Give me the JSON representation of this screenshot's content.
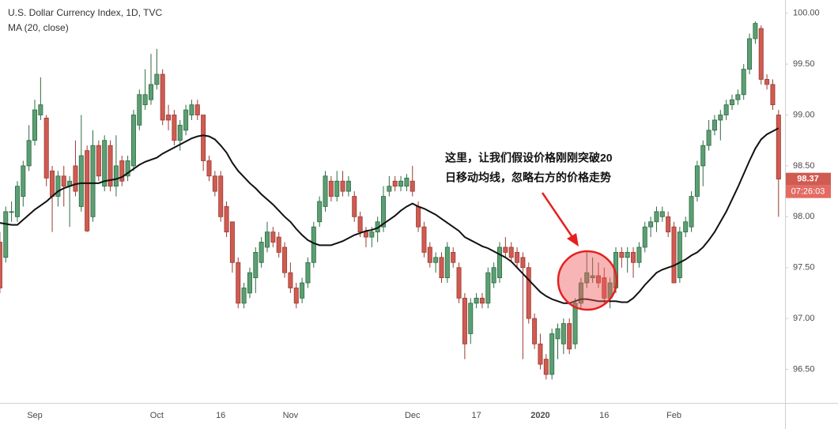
{
  "chart_data": {
    "type": "candlestick",
    "title": "U.S. Dollar Currency Index, 1D, TVC",
    "categories": [
      null,
      null,
      null,
      null,
      null,
      null,
      "Sep",
      null,
      null,
      null,
      null,
      null,
      null,
      null,
      null,
      null,
      null,
      null,
      null,
      null,
      null,
      null,
      null,
      null,
      null,
      null,
      null,
      "Oct",
      null,
      null,
      null,
      null,
      null,
      null,
      null,
      null,
      null,
      null,
      "16",
      null,
      null,
      null,
      null,
      null,
      null,
      null,
      null,
      null,
      null,
      null,
      "Nov",
      null,
      null,
      null,
      null,
      null,
      null,
      null,
      null,
      null,
      null,
      null,
      null,
      null,
      null,
      null,
      null,
      null,
      null,
      null,
      null,
      "Dec",
      null,
      null,
      null,
      null,
      null,
      null,
      null,
      null,
      null,
      null,
      "17",
      null,
      null,
      null,
      null,
      null,
      null,
      null,
      null,
      null,
      null,
      "2020",
      null,
      null,
      null,
      null,
      null,
      null,
      null,
      null,
      null,
      null,
      "16",
      null,
      null,
      null,
      null,
      null,
      null,
      null,
      null,
      null,
      null,
      null,
      "Feb",
      null,
      null,
      null,
      null,
      null,
      null,
      null,
      null,
      null,
      null,
      null,
      null,
      null,
      null,
      null,
      null,
      null,
      null
    ],
    "open": [
      97.75,
      97.6,
      98.05,
      98.0,
      98.2,
      98.5,
      98.75,
      99.0,
      98.97,
      98.45,
      98.2,
      98.4,
      98.3,
      98.5,
      98.1,
      98.65,
      98.0,
      98.7,
      98.3,
      98.7,
      98.3,
      98.55,
      98.4,
      98.5,
      98.9,
      99.1,
      99.15,
      99.3,
      99.4,
      99.0,
      99.0,
      98.75,
      98.85,
      99.0,
      99.1,
      99.0,
      98.55,
      98.4,
      98.4,
      98.1,
      97.95,
      97.55,
      97.15,
      97.25,
      97.4,
      97.55,
      97.7,
      97.85,
      97.8,
      97.7,
      97.45,
      97.3,
      97.2,
      97.35,
      97.55,
      97.95,
      98.1,
      98.35,
      98.2,
      98.35,
      98.25,
      98.2,
      98.0,
      97.85,
      97.8,
      97.85,
      97.9,
      98.25,
      98.35,
      98.3,
      98.3,
      98.35,
      98.1,
      97.9,
      97.7,
      97.55,
      97.6,
      97.4,
      97.65,
      97.5,
      97.2,
      96.85,
      97.15,
      97.2,
      97.15,
      97.35,
      97.4,
      97.7,
      97.7,
      97.65,
      97.6,
      97.5,
      97.0,
      96.75,
      96.6,
      96.45,
      96.8,
      96.75,
      96.95,
      96.75,
      97.15,
      97.35,
      97.4,
      97.42,
      97.4,
      97.2,
      97.3,
      97.65,
      97.6,
      97.65,
      97.55,
      97.7,
      97.9,
      97.95,
      98.0,
      98.0,
      97.9,
      97.4,
      97.85,
      97.9,
      98.2,
      98.5,
      98.7,
      98.85,
      98.95,
      99.0,
      99.1,
      99.15,
      99.2,
      99.45,
      99.75,
      99.85,
      99.35,
      99.3,
      99.0
    ],
    "high": [
      97.85,
      98.1,
      98.15,
      98.35,
      98.55,
      98.9,
      99.15,
      99.37,
      99.0,
      98.5,
      98.45,
      98.5,
      98.4,
      98.75,
      99.0,
      98.7,
      98.85,
      98.75,
      98.8,
      98.75,
      98.8,
      98.6,
      98.6,
      99.05,
      99.25,
      99.45,
      99.6,
      99.65,
      99.45,
      99.1,
      99.05,
      98.95,
      99.1,
      99.15,
      99.15,
      99.0,
      98.6,
      98.45,
      98.45,
      98.15,
      97.95,
      97.6,
      97.35,
      97.5,
      97.7,
      97.8,
      97.95,
      97.9,
      97.85,
      97.75,
      97.55,
      97.35,
      97.4,
      97.6,
      97.95,
      98.2,
      98.45,
      98.4,
      98.45,
      98.45,
      98.4,
      98.25,
      98.05,
      97.9,
      97.9,
      98.0,
      98.3,
      98.4,
      98.4,
      98.4,
      98.42,
      98.5,
      98.15,
      97.95,
      97.75,
      97.65,
      97.65,
      97.75,
      97.7,
      97.55,
      97.25,
      97.2,
      97.25,
      97.25,
      97.5,
      97.55,
      97.75,
      97.8,
      97.75,
      97.7,
      97.65,
      97.55,
      97.05,
      96.85,
      96.65,
      96.9,
      96.95,
      97.0,
      97.0,
      97.2,
      97.4,
      97.65,
      97.6,
      97.55,
      97.5,
      97.4,
      97.7,
      97.7,
      97.7,
      97.7,
      97.75,
      97.95,
      98.0,
      98.1,
      98.1,
      98.05,
      97.95,
      97.9,
      98.0,
      98.25,
      98.55,
      98.75,
      98.95,
      99.0,
      99.05,
      99.15,
      99.2,
      99.25,
      99.5,
      99.8,
      99.92,
      99.88,
      99.4,
      99.35,
      99.05
    ],
    "low": [
      97.25,
      97.55,
      97.95,
      97.95,
      98.1,
      98.45,
      98.7,
      98.95,
      98.3,
      97.85,
      98.1,
      98.1,
      97.9,
      98.2,
      98.05,
      97.85,
      97.95,
      98.35,
      98.25,
      98.25,
      98.2,
      98.3,
      98.35,
      98.45,
      98.85,
      99.05,
      99.1,
      99.25,
      98.9,
      98.85,
      98.7,
      98.65,
      98.8,
      98.95,
      98.95,
      98.45,
      98.35,
      98.2,
      97.95,
      97.8,
      97.45,
      97.1,
      97.1,
      97.2,
      97.25,
      97.5,
      97.65,
      97.7,
      97.6,
      97.4,
      97.25,
      97.1,
      97.15,
      97.3,
      97.5,
      97.9,
      98.05,
      98.15,
      98.15,
      98.2,
      98.2,
      97.95,
      97.8,
      97.7,
      97.7,
      97.75,
      97.85,
      98.2,
      98.25,
      98.25,
      98.25,
      98.2,
      97.85,
      97.6,
      97.5,
      97.45,
      97.35,
      97.35,
      97.5,
      97.15,
      96.6,
      96.75,
      97.1,
      97.1,
      97.1,
      97.3,
      97.35,
      97.6,
      97.55,
      97.5,
      96.6,
      96.95,
      96.7,
      96.5,
      96.4,
      96.4,
      96.6,
      96.65,
      96.65,
      96.7,
      97.1,
      97.3,
      97.35,
      97.3,
      97.15,
      97.1,
      97.25,
      97.5,
      97.45,
      97.4,
      97.5,
      97.65,
      97.8,
      97.85,
      97.95,
      97.8,
      97.35,
      97.35,
      97.8,
      97.85,
      98.15,
      98.3,
      98.65,
      98.8,
      98.75,
      98.95,
      99.05,
      99.1,
      99.15,
      99.4,
      99.7,
      99.3,
      99.25,
      99.05,
      98.0
    ],
    "close": [
      97.3,
      98.05,
      98.05,
      98.3,
      98.5,
      98.75,
      99.05,
      99.1,
      98.38,
      98.2,
      98.4,
      98.3,
      98.35,
      98.25,
      98.6,
      97.86,
      98.7,
      98.4,
      98.75,
      98.3,
      98.5,
      98.35,
      98.55,
      99.0,
      99.2,
      99.2,
      99.3,
      99.4,
      98.95,
      98.95,
      98.75,
      98.9,
      99.05,
      99.1,
      99.0,
      98.55,
      98.4,
      98.25,
      98.0,
      97.85,
      97.55,
      97.15,
      97.3,
      97.45,
      97.65,
      97.75,
      97.85,
      97.75,
      97.65,
      97.45,
      97.3,
      97.15,
      97.35,
      97.55,
      97.9,
      98.15,
      98.4,
      98.2,
      98.35,
      98.25,
      98.35,
      98.0,
      97.85,
      97.8,
      97.85,
      97.95,
      98.2,
      98.3,
      98.3,
      98.35,
      98.38,
      98.25,
      97.9,
      97.65,
      97.55,
      97.6,
      97.4,
      97.7,
      97.55,
      97.2,
      96.75,
      97.15,
      97.2,
      97.15,
      97.45,
      97.5,
      97.7,
      97.65,
      97.6,
      97.55,
      97.5,
      97.0,
      96.75,
      96.55,
      96.45,
      96.85,
      96.9,
      96.95,
      96.7,
      97.15,
      97.35,
      97.45,
      97.42,
      97.35,
      97.2,
      97.35,
      97.65,
      97.6,
      97.65,
      97.55,
      97.7,
      97.9,
      97.95,
      98.05,
      98.05,
      97.85,
      97.35,
      97.85,
      97.95,
      98.2,
      98.5,
      98.7,
      98.85,
      98.95,
      99.0,
      99.1,
      99.15,
      99.2,
      99.45,
      99.75,
      99.9,
      99.35,
      99.3,
      99.1,
      98.37
    ],
    "up_color": "#5b9f72",
    "down_color": "#cf5b51",
    "series": [
      {
        "name": "MA (20, close)",
        "color": "#111111",
        "values": [
          97.94,
          97.93,
          97.92,
          97.92,
          97.97,
          98.02,
          98.07,
          98.11,
          98.15,
          98.2,
          98.25,
          98.28,
          98.3,
          98.32,
          98.33,
          98.33,
          98.33,
          98.33,
          98.35,
          98.36,
          98.37,
          98.39,
          98.43,
          98.47,
          98.51,
          98.54,
          98.56,
          98.58,
          98.62,
          98.65,
          98.68,
          98.71,
          98.74,
          98.77,
          98.79,
          98.8,
          98.79,
          98.76,
          98.7,
          98.63,
          98.53,
          98.45,
          98.39,
          98.33,
          98.28,
          98.22,
          98.17,
          98.12,
          98.06,
          98.0,
          97.95,
          97.88,
          97.82,
          97.77,
          97.74,
          97.72,
          97.72,
          97.72,
          97.74,
          97.76,
          97.79,
          97.82,
          97.84,
          97.86,
          97.87,
          97.89,
          97.93,
          97.97,
          98.01,
          98.06,
          98.1,
          98.13,
          98.1,
          98.08,
          98.05,
          98.02,
          97.98,
          97.94,
          97.9,
          97.86,
          97.8,
          97.77,
          97.74,
          97.71,
          97.69,
          97.66,
          97.63,
          97.6,
          97.56,
          97.5,
          97.44,
          97.38,
          97.32,
          97.26,
          97.22,
          97.19,
          97.17,
          97.15,
          97.15,
          97.17,
          97.19,
          97.19,
          97.18,
          97.17,
          97.17,
          97.17,
          97.17,
          97.16,
          97.16,
          97.2,
          97.26,
          97.33,
          97.39,
          97.45,
          97.48,
          97.5,
          97.52,
          97.55,
          97.58,
          97.62,
          97.65,
          97.7,
          97.77,
          97.85,
          97.95,
          98.05,
          98.17,
          98.29,
          98.42,
          98.55,
          98.67,
          98.76,
          98.81,
          98.84,
          98.87
        ]
      }
    ],
    "ylim": [
      96.17,
      100.13
    ],
    "yticks": [
      {
        "value": 96.5,
        "label": "96.50"
      },
      {
        "value": 97,
        "label": "97.00"
      },
      {
        "value": 97.5,
        "label": "97.50"
      },
      {
        "value": 98,
        "label": "98.00"
      },
      {
        "value": 98.5,
        "label": "98.50"
      },
      {
        "value": 99,
        "label": "99.00"
      },
      {
        "value": 99.5,
        "label": "99.50"
      },
      {
        "value": 100,
        "label": "100.00"
      }
    ],
    "grid": false,
    "countdown": "07:26:03",
    "annotation": [
      "这里，让我们假设价格刚刚突破20",
      "日移动均线，忽略右方的价格走势"
    ]
  }
}
